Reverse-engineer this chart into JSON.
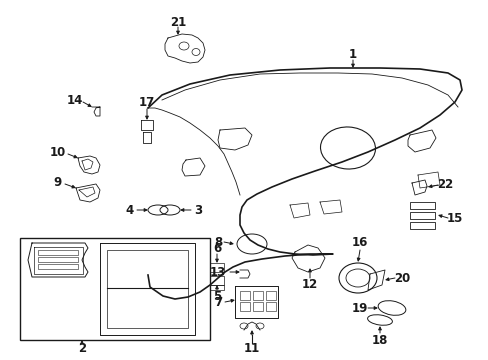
{
  "bg_color": "#ffffff",
  "line_color": "#1a1a1a",
  "fig_width": 4.89,
  "fig_height": 3.6,
  "dpi": 100,
  "font_size": 8.5,
  "font_size_small": 7.5
}
